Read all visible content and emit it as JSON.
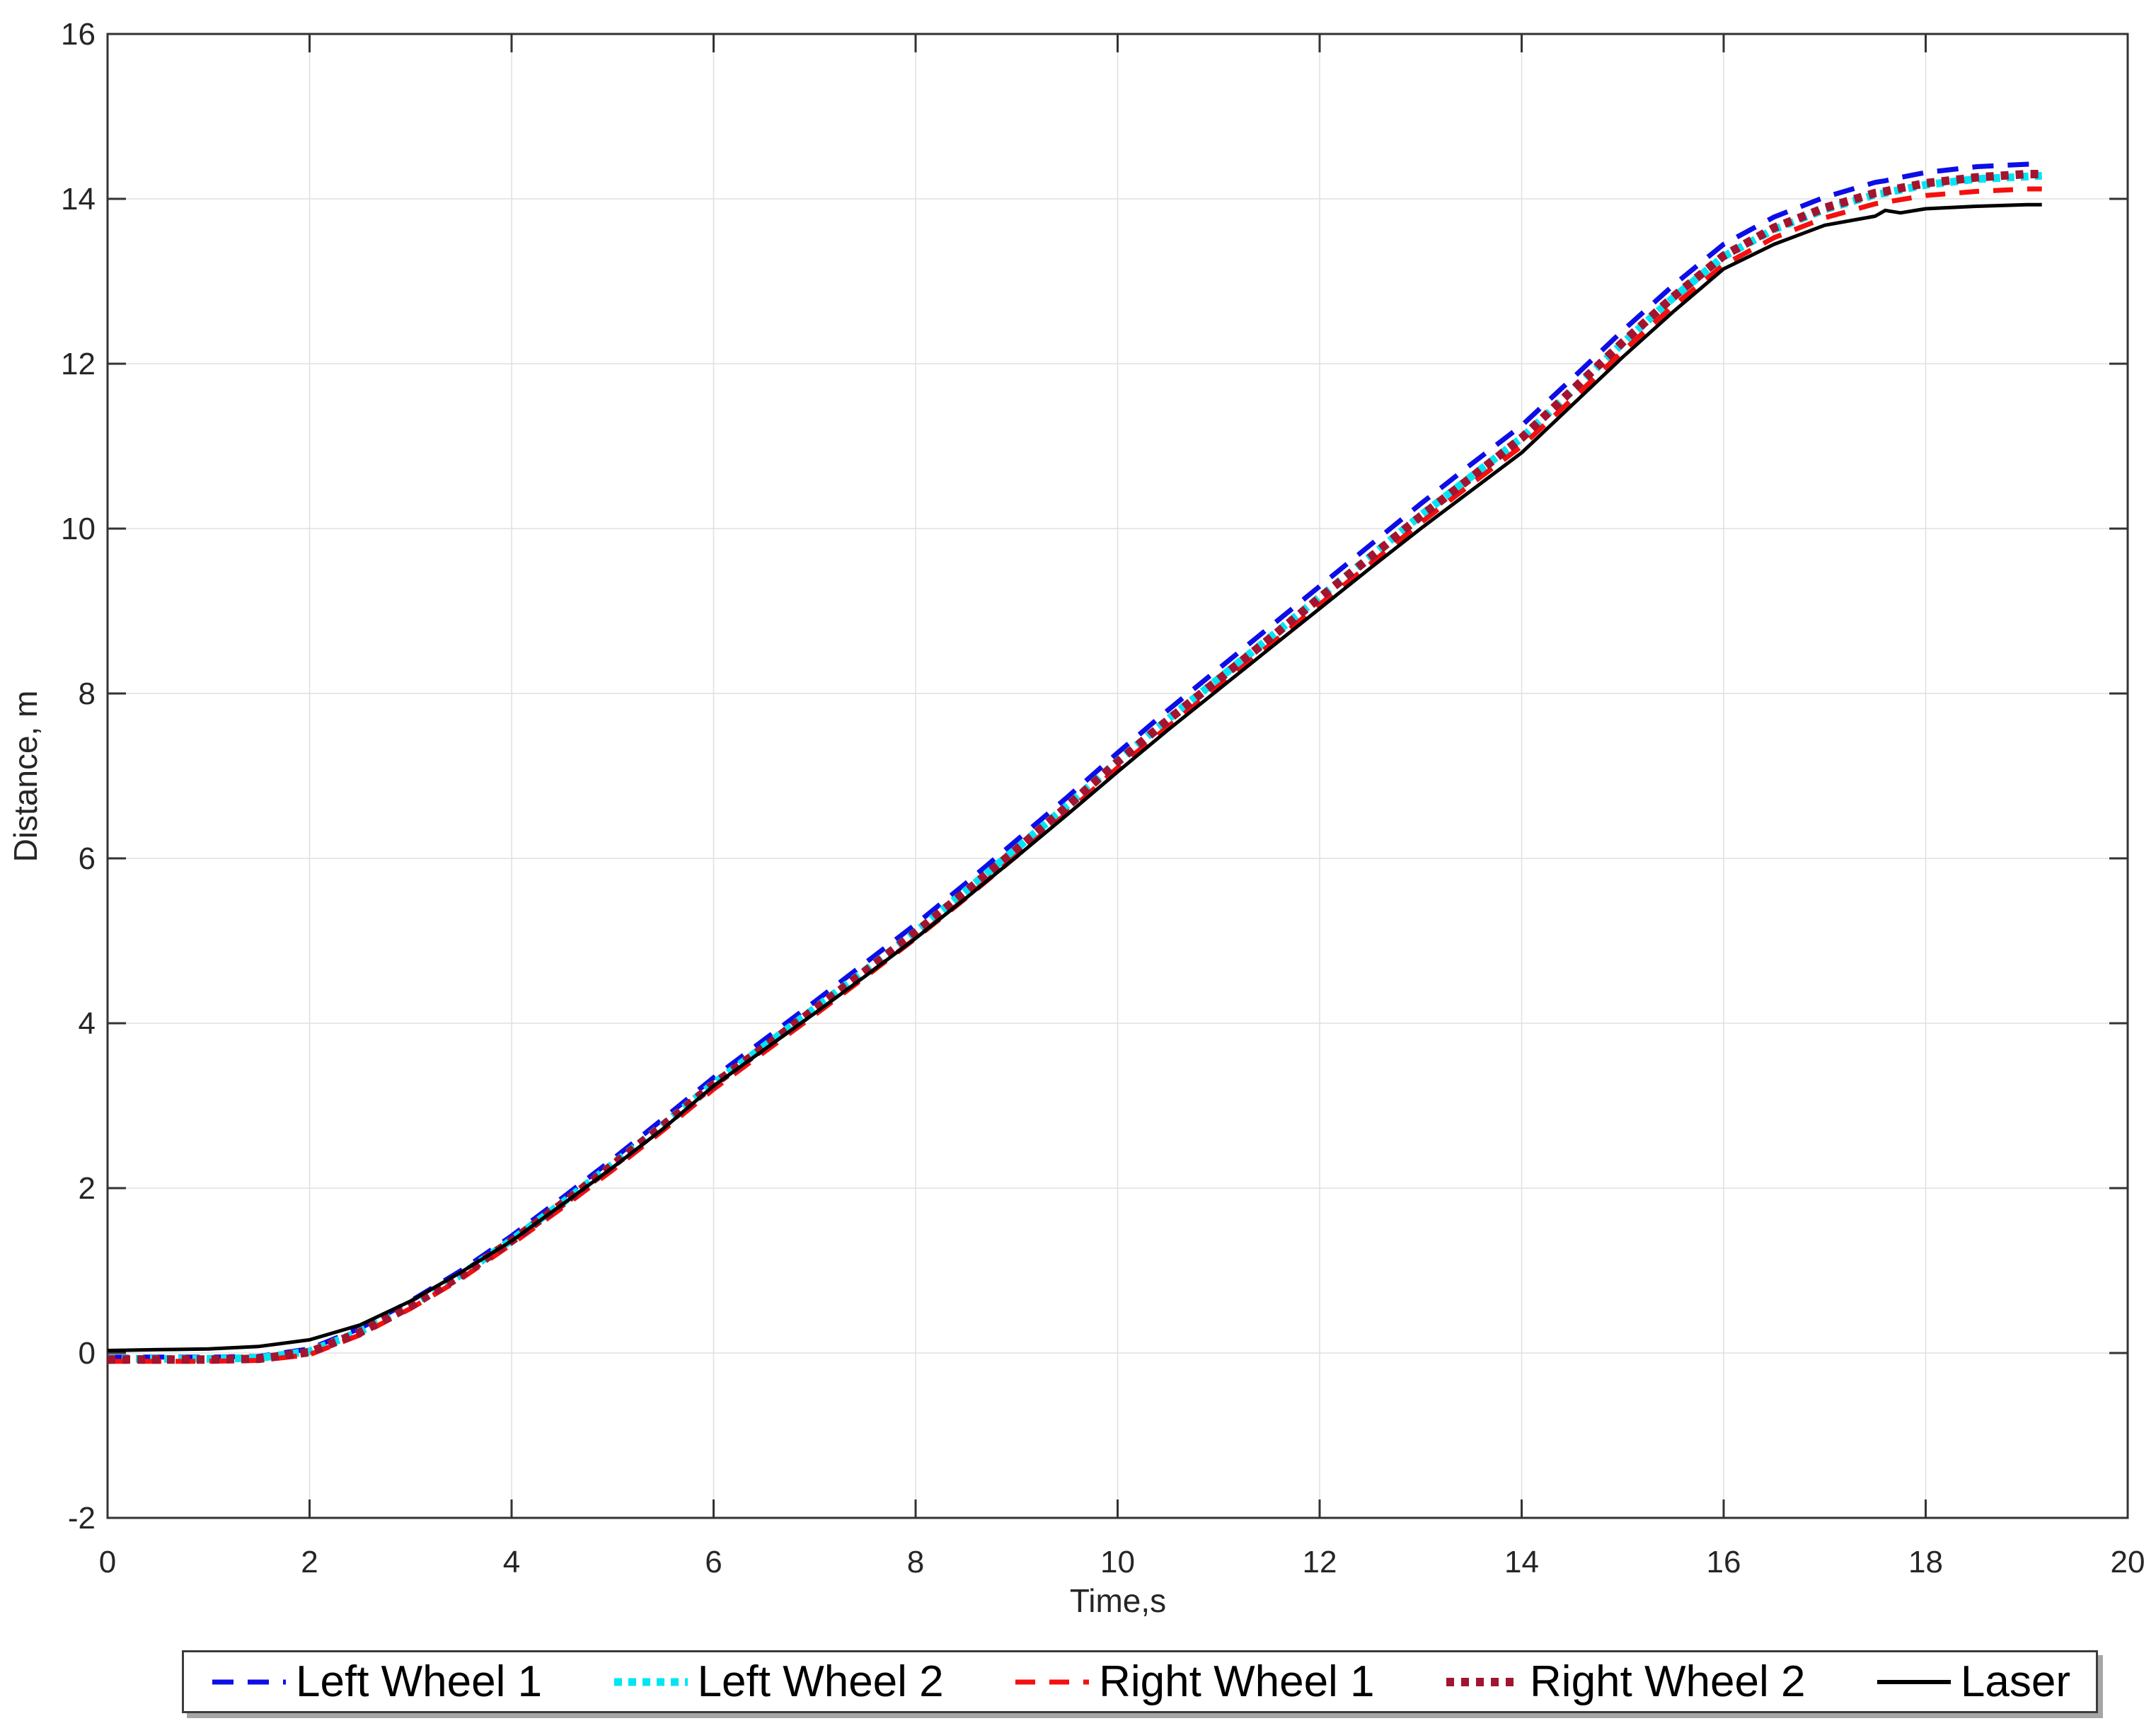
{
  "figure": {
    "background": "#ffffff",
    "axis_color": "#333333",
    "grid_color": "#e0e0e0",
    "tick_label_color": "#262626"
  },
  "chart_data": {
    "type": "line",
    "title": "",
    "xlabel": "Time,s",
    "ylabel": "Distance, m",
    "xlim": [
      0,
      20
    ],
    "ylim": [
      -2,
      16
    ],
    "x_ticks": [
      0,
      2,
      4,
      6,
      8,
      10,
      12,
      14,
      16,
      18,
      20
    ],
    "y_ticks": [
      -2,
      0,
      2,
      4,
      6,
      8,
      10,
      12,
      14,
      16
    ],
    "grid": true,
    "legend_position": "bottom-outside-horizontal",
    "x": [
      0,
      0.5,
      1,
      1.5,
      2,
      2.5,
      3,
      3.5,
      4,
      4.5,
      5,
      5.5,
      6,
      6.5,
      7,
      7.5,
      8,
      8.5,
      9,
      9.5,
      10,
      10.5,
      11,
      11.5,
      12,
      12.5,
      13,
      13.5,
      14,
      14.5,
      15,
      15.5,
      16,
      16.5,
      17,
      17.5,
      17.6,
      17.75,
      18,
      18.5,
      19,
      19.15
    ],
    "series": [
      {
        "name": "Left Wheel 1",
        "color": "#0d0de8",
        "line_style": "dashed",
        "line_width": 7,
        "dash": "30 20",
        "values": [
          -0.05,
          -0.05,
          -0.05,
          -0.04,
          0.05,
          0.3,
          0.63,
          1.0,
          1.42,
          1.88,
          2.35,
          2.84,
          3.34,
          3.8,
          4.26,
          4.73,
          5.2,
          5.7,
          6.22,
          6.74,
          7.28,
          7.8,
          8.3,
          8.8,
          9.3,
          9.8,
          10.3,
          10.78,
          11.25,
          11.82,
          12.4,
          12.95,
          13.45,
          13.78,
          14.02,
          14.2,
          14.22,
          14.26,
          14.32,
          14.39,
          14.42,
          14.42
        ]
      },
      {
        "name": "Left Wheel 2",
        "color": "#00e5f5",
        "line_style": "dotted",
        "line_width": 11,
        "dash": "11 9",
        "values": [
          -0.07,
          -0.07,
          -0.07,
          -0.06,
          0.02,
          0.26,
          0.58,
          0.95,
          1.37,
          1.82,
          2.29,
          2.77,
          3.27,
          3.72,
          4.18,
          4.64,
          5.11,
          5.61,
          6.12,
          6.64,
          7.18,
          7.69,
          8.18,
          8.67,
          9.17,
          9.66,
          10.16,
          10.63,
          11.1,
          11.67,
          12.25,
          12.8,
          13.3,
          13.63,
          13.87,
          14.05,
          14.07,
          14.11,
          14.17,
          14.24,
          14.27,
          14.28
        ]
      },
      {
        "name": "Right Wheel 1",
        "color": "#f50f0f",
        "line_style": "dashed",
        "line_width": 7,
        "dash": "28 20",
        "values": [
          -0.1,
          -0.1,
          -0.1,
          -0.09,
          -0.02,
          0.22,
          0.54,
          0.9,
          1.32,
          1.76,
          2.22,
          2.7,
          3.2,
          3.65,
          4.1,
          4.56,
          5.03,
          5.52,
          6.03,
          6.55,
          7.1,
          7.6,
          8.09,
          8.58,
          9.08,
          9.57,
          10.07,
          10.54,
          11.0,
          11.57,
          12.15,
          12.7,
          13.2,
          13.53,
          13.77,
          13.94,
          13.96,
          13.99,
          14.04,
          14.09,
          14.12,
          14.12
        ]
      },
      {
        "name": "Right Wheel 2",
        "color": "#a2142f",
        "line_style": "dotted",
        "line_width": 12,
        "dash": "11 10",
        "values": [
          -0.08,
          -0.08,
          -0.08,
          -0.07,
          0.01,
          0.25,
          0.57,
          0.94,
          1.36,
          1.81,
          2.28,
          2.76,
          3.26,
          3.71,
          4.17,
          4.63,
          5.1,
          5.6,
          6.11,
          6.63,
          7.17,
          7.68,
          8.17,
          8.66,
          9.16,
          9.65,
          10.15,
          10.62,
          11.1,
          11.68,
          12.26,
          12.81,
          13.31,
          13.65,
          13.89,
          14.07,
          14.09,
          14.13,
          14.19,
          14.26,
          14.3,
          14.3
        ]
      },
      {
        "name": "Laser",
        "color": "#000000",
        "line_style": "solid",
        "line_width": 5,
        "dash": "",
        "values": [
          0.03,
          0.04,
          0.05,
          0.08,
          0.16,
          0.34,
          0.63,
          0.98,
          1.36,
          1.8,
          2.25,
          2.72,
          3.24,
          3.68,
          4.12,
          4.57,
          5.03,
          5.52,
          6.02,
          6.53,
          7.05,
          7.56,
          8.05,
          8.54,
          9.03,
          9.52,
          10.0,
          10.46,
          10.92,
          11.5,
          12.08,
          12.63,
          13.15,
          13.45,
          13.68,
          13.79,
          13.86,
          13.83,
          13.88,
          13.91,
          13.93,
          13.93
        ]
      }
    ]
  }
}
